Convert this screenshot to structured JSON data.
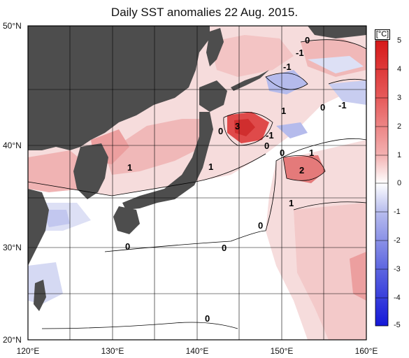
{
  "title": "Daily SST anomalies 22 Aug. 2015.",
  "lat_labels": [
    "50°N",
    "40°N",
    "30°N",
    "20°N"
  ],
  "lon_labels": [
    "120°E",
    "130°E",
    "140°E",
    "150°E",
    "160°E"
  ],
  "colorbar": {
    "unit": "[°C]",
    "ticks": [
      "5",
      "4",
      "3",
      "2",
      "1",
      "0",
      "-1",
      "-2",
      "-3",
      "-4",
      "-5"
    ]
  },
  "contour_labels": [
    "0",
    "-1",
    "-1",
    "1",
    "0",
    "-1",
    "3",
    "0",
    "-1",
    "0",
    "0",
    "1",
    "1",
    "1",
    "2",
    "1",
    "0",
    "0",
    "0",
    "0"
  ],
  "colors": {
    "land": "#4d4d4d",
    "warm_1": "#f6dcdc",
    "warm_2": "#f0b3b3",
    "warm_3": "#e98a8a",
    "warm_4": "#df4a4a",
    "cool_1": "#dde0f5",
    "cool_2": "#b5bbec",
    "grid": "#000000"
  }
}
